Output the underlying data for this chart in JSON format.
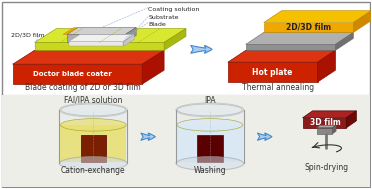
{
  "title_top": "Blade coating of 2D or 3D film",
  "title_top2": "Thermal annealing",
  "title_bot1": "Cation-exchange",
  "title_bot2": "Washing",
  "title_bot3": "Spin-drying",
  "label_bot1": "FAI/IPA solution",
  "label_bot2": "IPA",
  "label_blade": "Doctor blade coater",
  "label_hotplate": "Hot plate",
  "label_film2": "2D/3D film",
  "label_3dfilm": "3D film",
  "label_coating": "Coating solution",
  "label_substrate": "Substrate",
  "label_blade2": "Blade",
  "label_2d3d": "2D/3D film",
  "red_dark": "#8b0000",
  "red_mid": "#cc2200",
  "red_bright": "#dd3300",
  "green_film": "#c8d820",
  "gold_film": "#f0b800",
  "gray_sub": "#909090",
  "border_color": "#888888"
}
